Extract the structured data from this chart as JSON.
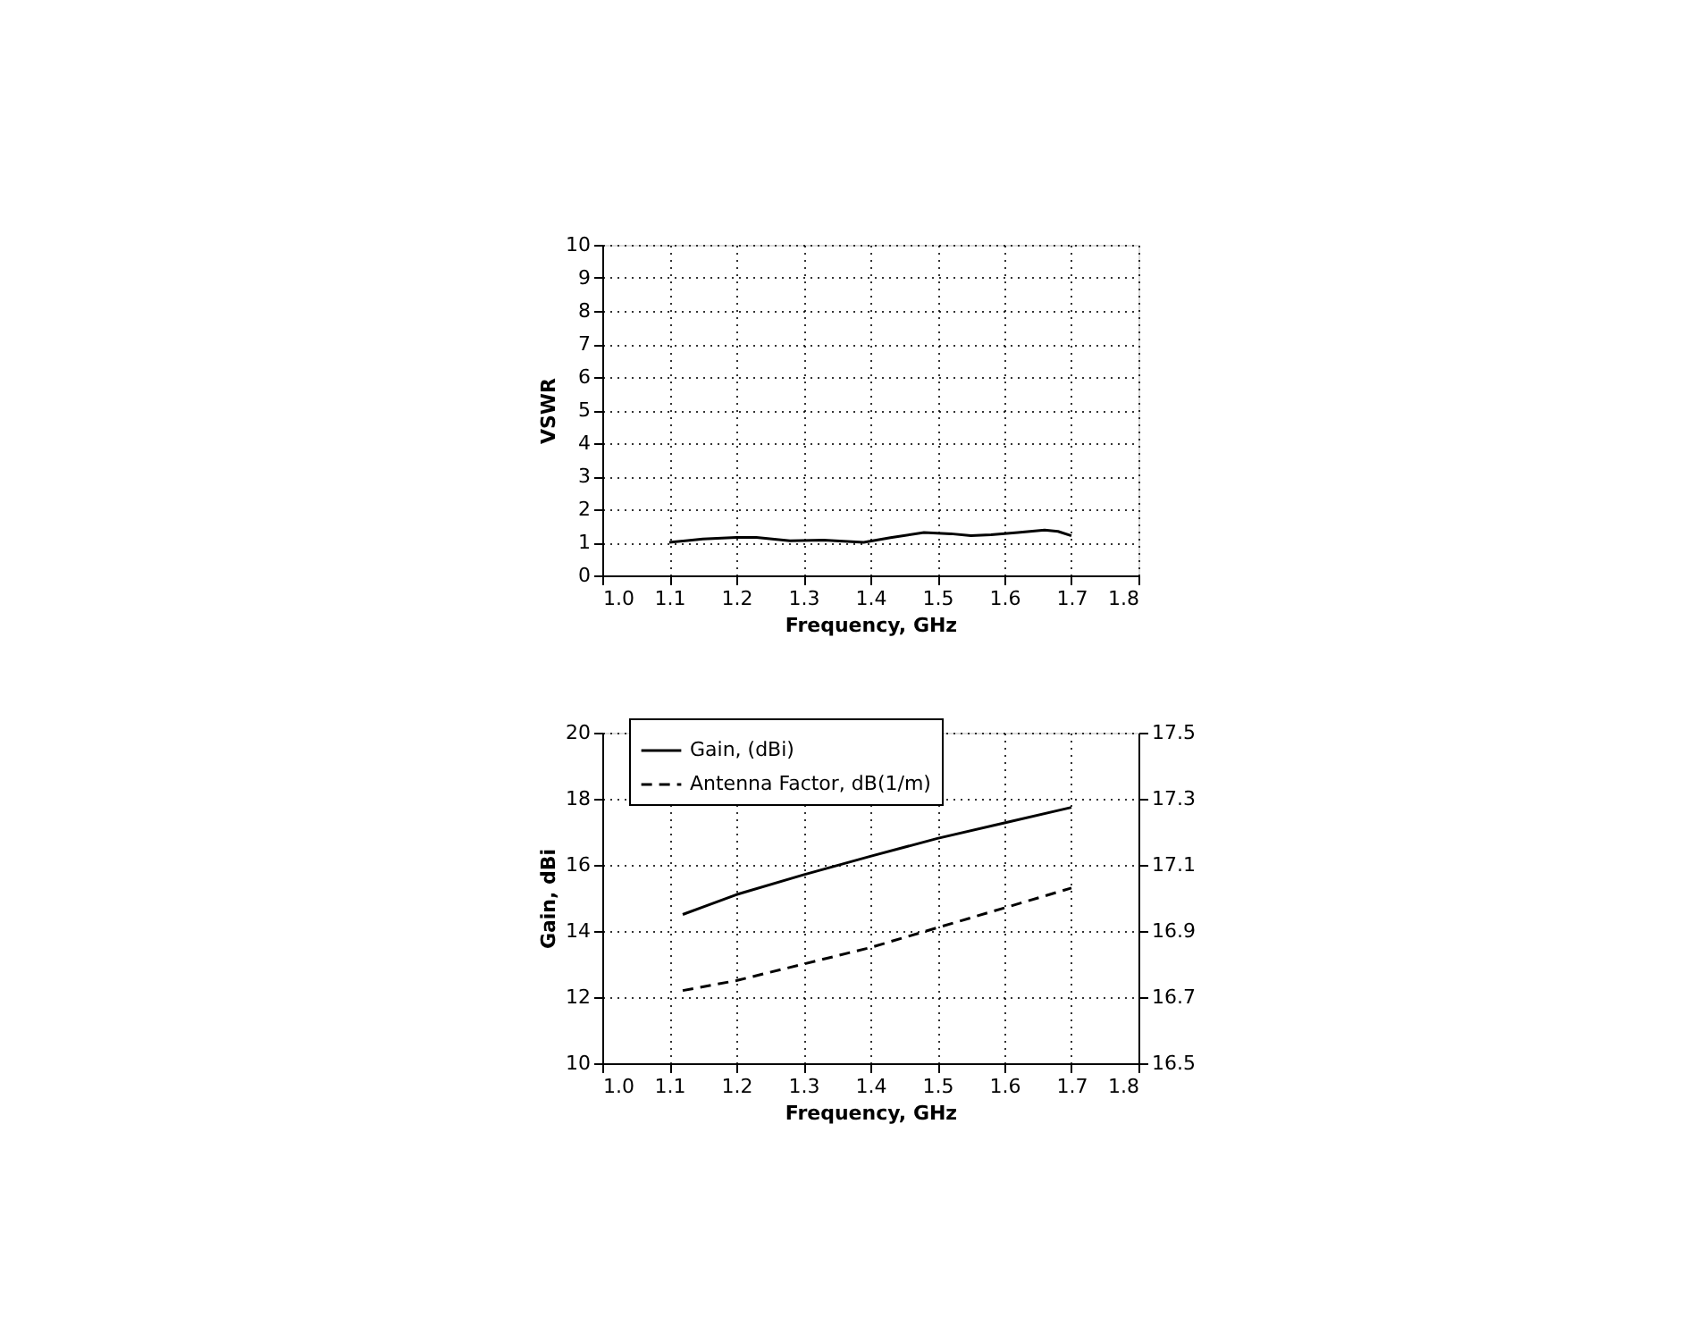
{
  "chart_data": [
    {
      "type": "line",
      "xlabel": "Frequency, GHz",
      "ylabel": "VSWR",
      "grid": true,
      "legend": false,
      "marker": "none",
      "line_style": "solid",
      "xlim": [
        1.0,
        1.8
      ],
      "xticks": [
        {
          "value": 1.0,
          "label": "1.0"
        },
        1.1,
        1.2,
        1.3,
        1.4,
        1.5,
        1.6,
        1.7,
        1.8
      ],
      "ylim": [
        0,
        10
      ],
      "yticks": [
        0,
        1,
        2,
        3,
        4,
        5,
        6,
        7,
        8,
        9,
        10
      ],
      "series": [
        {
          "color": "#000000",
          "x": [
            1.1,
            1.15,
            1.2,
            1.23,
            1.28,
            1.33,
            1.39,
            1.43,
            1.48,
            1.52,
            1.55,
            1.58,
            1.62,
            1.66,
            1.68,
            1.7
          ],
          "values": [
            1.0,
            1.1,
            1.15,
            1.15,
            1.05,
            1.07,
            1.0,
            1.14,
            1.3,
            1.26,
            1.2,
            1.23,
            1.3,
            1.37,
            1.33,
            1.2
          ]
        }
      ]
    },
    {
      "type": "line",
      "xlabel": "Frequency, GHz",
      "ylabel": "Gain, dBi",
      "grid": true,
      "legend": "top left",
      "marker": "none",
      "xlim": [
        1.0,
        1.8
      ],
      "xticks": [
        {
          "value": 1.0,
          "label": "1.0"
        },
        1.1,
        1.2,
        1.3,
        1.4,
        1.5,
        1.6,
        1.7,
        1.8
      ],
      "ylim": [
        10,
        20
      ],
      "yticks": [
        10,
        12,
        14,
        16,
        18,
        20
      ],
      "y2lim": [
        16.5,
        17.5
      ],
      "y2ticks": [
        16.5,
        16.7,
        16.9,
        17.1,
        17.3,
        17.5
      ],
      "x": [
        1.12,
        1.2,
        1.3,
        1.4,
        1.5,
        1.6,
        1.7
      ],
      "series": [
        {
          "name": "Gain, (dBi)",
          "color": "#000000",
          "line_style": "solid",
          "values": [
            14.5,
            15.1,
            15.7,
            16.26,
            16.8,
            17.27,
            17.74
          ]
        },
        {
          "name": "Antenna Factor, dB(1/m)",
          "color": "#000000",
          "line_style": "dashed",
          "axis": "y2",
          "values": [
            16.72,
            16.75,
            16.8,
            16.85,
            16.91,
            16.97,
            17.03
          ]
        }
      ]
    }
  ]
}
